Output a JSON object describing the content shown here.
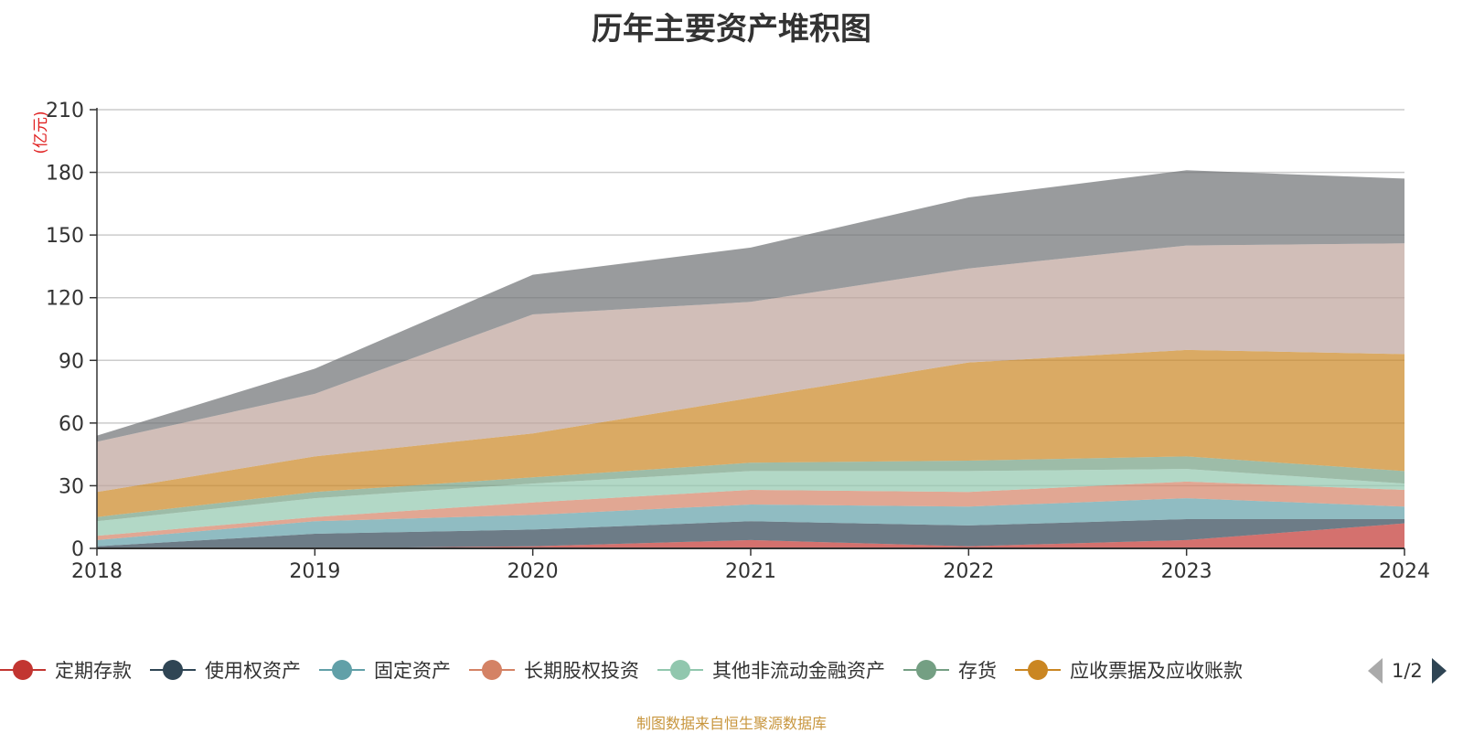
{
  "chart_data": {
    "type": "area",
    "stacked": true,
    "title": "历年主要资产堆积图",
    "unit_label": "(亿元)",
    "categories": [
      "2018",
      "2019",
      "2020",
      "2021",
      "2022",
      "2023",
      "2024"
    ],
    "ylim": [
      0,
      210
    ],
    "yticks": [
      0,
      30,
      60,
      90,
      120,
      150,
      180,
      210
    ],
    "grid": true,
    "legend_position": "bottom",
    "series": [
      {
        "name": "定期存款",
        "color": "#c23531",
        "values": [
          0,
          0,
          1,
          4,
          1,
          4,
          12
        ]
      },
      {
        "name": "使用权资产",
        "color": "#2f4554",
        "values": [
          1,
          7,
          8,
          9,
          10,
          10,
          2
        ]
      },
      {
        "name": "固定资产",
        "color": "#61a0a8",
        "values": [
          3,
          6,
          7,
          8,
          9,
          10,
          6
        ]
      },
      {
        "name": "长期股权投资",
        "color": "#d48265",
        "values": [
          2,
          2,
          6,
          7,
          7,
          8,
          8
        ]
      },
      {
        "name": "其他非流动金融资产",
        "color": "#91c7ae",
        "values": [
          7,
          9,
          9,
          9,
          10,
          6,
          3
        ]
      },
      {
        "name": "存货",
        "color": "#749f83",
        "values": [
          2,
          3,
          3,
          4,
          5,
          6,
          6
        ]
      },
      {
        "name": "应收票据及应收账款",
        "color": "#ca8622",
        "values": [
          12,
          17,
          21,
          31,
          47,
          51,
          56
        ]
      },
      {
        "name": "",
        "color": "#bda29a",
        "values": [
          24,
          30,
          57,
          46,
          45,
          50,
          53
        ]
      },
      {
        "name": "",
        "color": "#6e7074",
        "values": [
          3,
          12,
          19,
          26,
          34,
          36,
          31
        ]
      }
    ]
  },
  "legend": {
    "page": "1/2"
  },
  "footer": {
    "source": "制图数据来自恒生聚源数据库"
  }
}
